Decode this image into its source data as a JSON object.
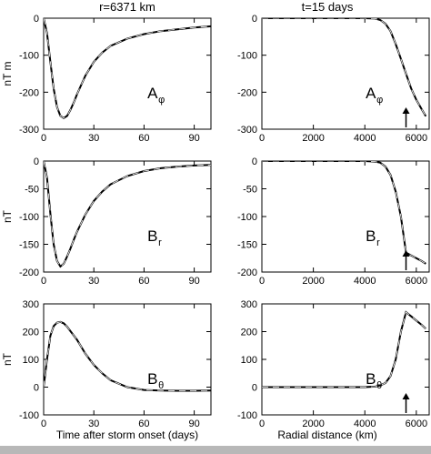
{
  "figure": {
    "left_column_title": "r=6371 km",
    "right_column_title": "t=15 days",
    "left_xlabel": "Time after storm onset (days)",
    "right_xlabel": "Radial distance (km)"
  },
  "chart_data": [
    {
      "type": "line",
      "panel": "time-Aphi",
      "label_main": "A",
      "label_sub": "φ",
      "ylabel": "nT m",
      "xlim": [
        0,
        100
      ],
      "ylim": [
        -300,
        0
      ],
      "xticks": [
        0,
        30,
        60,
        90
      ],
      "yticks": [
        -300,
        -200,
        -100,
        0
      ],
      "series": [
        {
          "style": "solid",
          "x": [
            0,
            2,
            4,
            6,
            8,
            10,
            12,
            14,
            16,
            18,
            20,
            25,
            30,
            35,
            40,
            50,
            60,
            70,
            80,
            90,
            100
          ],
          "y": [
            0,
            -40,
            -118,
            -190,
            -240,
            -264,
            -270,
            -264,
            -248,
            -228,
            -205,
            -155,
            -118,
            -93,
            -75,
            -55,
            -43,
            -35,
            -30,
            -25,
            -22
          ]
        },
        {
          "style": "dashed",
          "x": [
            0,
            2,
            4,
            6,
            8,
            10,
            12,
            14,
            16,
            18,
            20,
            25,
            30,
            35,
            40,
            50,
            60,
            70,
            80,
            90,
            100
          ],
          "y": [
            0,
            -40,
            -118,
            -190,
            -240,
            -264,
            -270,
            -264,
            -248,
            -228,
            -205,
            -155,
            -118,
            -93,
            -75,
            -55,
            -43,
            -35,
            -30,
            -25,
            -22
          ]
        }
      ]
    },
    {
      "type": "line",
      "panel": "radial-Aphi",
      "label_main": "A",
      "label_sub": "φ",
      "ylabel": "",
      "xlim": [
        0,
        6500
      ],
      "ylim": [
        -300,
        0
      ],
      "xticks": [
        0,
        2000,
        4000,
        6000
      ],
      "xtick_labels": [
        "0",
        "2000",
        "4000",
        "6000"
      ],
      "yticks": [
        -300,
        -200,
        -100,
        0
      ],
      "arrow_at_x": 5600,
      "series": [
        {
          "style": "solid",
          "x": [
            0,
            1000,
            2000,
            3000,
            4000,
            4400,
            4600,
            4800,
            5000,
            5200,
            5400,
            5600,
            5800,
            6000,
            6200,
            6371
          ],
          "y": [
            0,
            0,
            0,
            0,
            0,
            -1,
            -5,
            -15,
            -35,
            -70,
            -110,
            -150,
            -190,
            -220,
            -245,
            -265
          ]
        },
        {
          "style": "dashed",
          "x": [
            0,
            1000,
            2000,
            3000,
            4000,
            4400,
            4600,
            4800,
            5000,
            5200,
            5400,
            5600,
            5800,
            6000,
            6200,
            6371
          ],
          "y": [
            0,
            0,
            0,
            0,
            0,
            -1,
            -5,
            -15,
            -35,
            -70,
            -110,
            -150,
            -190,
            -220,
            -245,
            -265
          ]
        }
      ]
    },
    {
      "type": "line",
      "panel": "time-Br",
      "label_main": "B",
      "label_sub": "r",
      "ylabel": "nT",
      "xlim": [
        0,
        100
      ],
      "ylim": [
        -200,
        0
      ],
      "xticks": [
        0,
        30,
        60,
        90
      ],
      "yticks": [
        -200,
        -150,
        -100,
        -50,
        0
      ],
      "series": [
        {
          "style": "solid",
          "x": [
            0,
            2,
            4,
            6,
            8,
            10,
            12,
            14,
            16,
            18,
            20,
            25,
            30,
            35,
            40,
            50,
            60,
            70,
            80,
            90,
            100
          ],
          "y": [
            0,
            -30,
            -95,
            -150,
            -180,
            -190,
            -185,
            -172,
            -158,
            -142,
            -127,
            -96,
            -72,
            -55,
            -42,
            -27,
            -18,
            -13,
            -10,
            -8,
            -7
          ]
        },
        {
          "style": "dashed",
          "x": [
            0,
            2,
            4,
            6,
            8,
            10,
            12,
            14,
            16,
            18,
            20,
            25,
            30,
            35,
            40,
            50,
            60,
            70,
            80,
            90,
            100
          ],
          "y": [
            0,
            -30,
            -95,
            -150,
            -180,
            -190,
            -185,
            -172,
            -158,
            -142,
            -127,
            -96,
            -72,
            -55,
            -42,
            -27,
            -18,
            -13,
            -10,
            -8,
            -7
          ]
        }
      ]
    },
    {
      "type": "line",
      "panel": "radial-Br",
      "label_main": "B",
      "label_sub": "r",
      "ylabel": "",
      "xlim": [
        0,
        6500
      ],
      "ylim": [
        -200,
        0
      ],
      "xticks": [
        0,
        2000,
        4000,
        6000
      ],
      "xtick_labels": [
        "0",
        "2000",
        "4000",
        "6000"
      ],
      "yticks": [
        -200,
        -150,
        -100,
        -50,
        0
      ],
      "arrow_at_x": 5600,
      "series": [
        {
          "style": "solid",
          "x": [
            0,
            1000,
            2000,
            3000,
            4000,
            4400,
            4600,
            4800,
            5000,
            5200,
            5400,
            5600,
            5800,
            6000,
            6200,
            6371
          ],
          "y": [
            0,
            0,
            0,
            0,
            0,
            -1,
            -3,
            -10,
            -25,
            -55,
            -100,
            -165,
            -170,
            -175,
            -180,
            -185
          ]
        },
        {
          "style": "dashed",
          "x": [
            0,
            1000,
            2000,
            3000,
            4000,
            4400,
            4600,
            4800,
            5000,
            5200,
            5400,
            5600,
            5800,
            6000,
            6200,
            6371
          ],
          "y": [
            0,
            0,
            0,
            0,
            0,
            -1,
            -3,
            -10,
            -25,
            -55,
            -100,
            -165,
            -170,
            -175,
            -180,
            -185
          ]
        }
      ]
    },
    {
      "type": "line",
      "panel": "time-Btheta",
      "label_main": "B",
      "label_sub": "θ",
      "ylabel": "nT",
      "xlim": [
        0,
        100
      ],
      "ylim": [
        -100,
        300
      ],
      "xticks": [
        0,
        30,
        60,
        90
      ],
      "yticks": [
        -100,
        0,
        100,
        200,
        300
      ],
      "series": [
        {
          "style": "solid",
          "x": [
            0,
            2,
            4,
            6,
            8,
            10,
            12,
            14,
            16,
            20,
            25,
            30,
            35,
            40,
            50,
            60,
            70,
            80,
            90,
            100
          ],
          "y": [
            0,
            100,
            185,
            220,
            232,
            235,
            230,
            218,
            202,
            170,
            120,
            80,
            50,
            25,
            0,
            -10,
            -12,
            -13,
            -13,
            -12
          ]
        },
        {
          "style": "dashed",
          "x": [
            0,
            2,
            4,
            6,
            8,
            10,
            12,
            14,
            16,
            20,
            25,
            30,
            35,
            40,
            50,
            60,
            70,
            80,
            90,
            100
          ],
          "y": [
            0,
            100,
            185,
            220,
            232,
            235,
            230,
            218,
            202,
            170,
            120,
            80,
            50,
            25,
            0,
            -10,
            -12,
            -13,
            -13,
            -12
          ]
        }
      ]
    },
    {
      "type": "line",
      "panel": "radial-Btheta",
      "label_main": "B",
      "label_sub": "θ",
      "ylabel": "",
      "xlim": [
        0,
        6500
      ],
      "ylim": [
        -100,
        300
      ],
      "xticks": [
        0,
        2000,
        4000,
        6000
      ],
      "xtick_labels": [
        "0",
        "2000",
        "4000",
        "6000"
      ],
      "yticks": [
        -100,
        0,
        100,
        200,
        300
      ],
      "arrow_at_x": 5600,
      "series": [
        {
          "style": "solid",
          "x": [
            0,
            1000,
            2000,
            3000,
            4000,
            4400,
            4600,
            4800,
            5000,
            5200,
            5400,
            5600,
            5800,
            6000,
            6200,
            6371
          ],
          "y": [
            0,
            0,
            0,
            0,
            0,
            2,
            6,
            15,
            40,
            100,
            200,
            270,
            255,
            240,
            225,
            210
          ]
        },
        {
          "style": "dashed",
          "x": [
            0,
            1000,
            2000,
            3000,
            4000,
            4400,
            4600,
            4800,
            5000,
            5200,
            5400,
            5600,
            5800,
            6000,
            6200,
            6371
          ],
          "y": [
            0,
            0,
            0,
            0,
            0,
            2,
            6,
            15,
            40,
            100,
            200,
            270,
            255,
            240,
            225,
            210
          ]
        }
      ]
    }
  ]
}
